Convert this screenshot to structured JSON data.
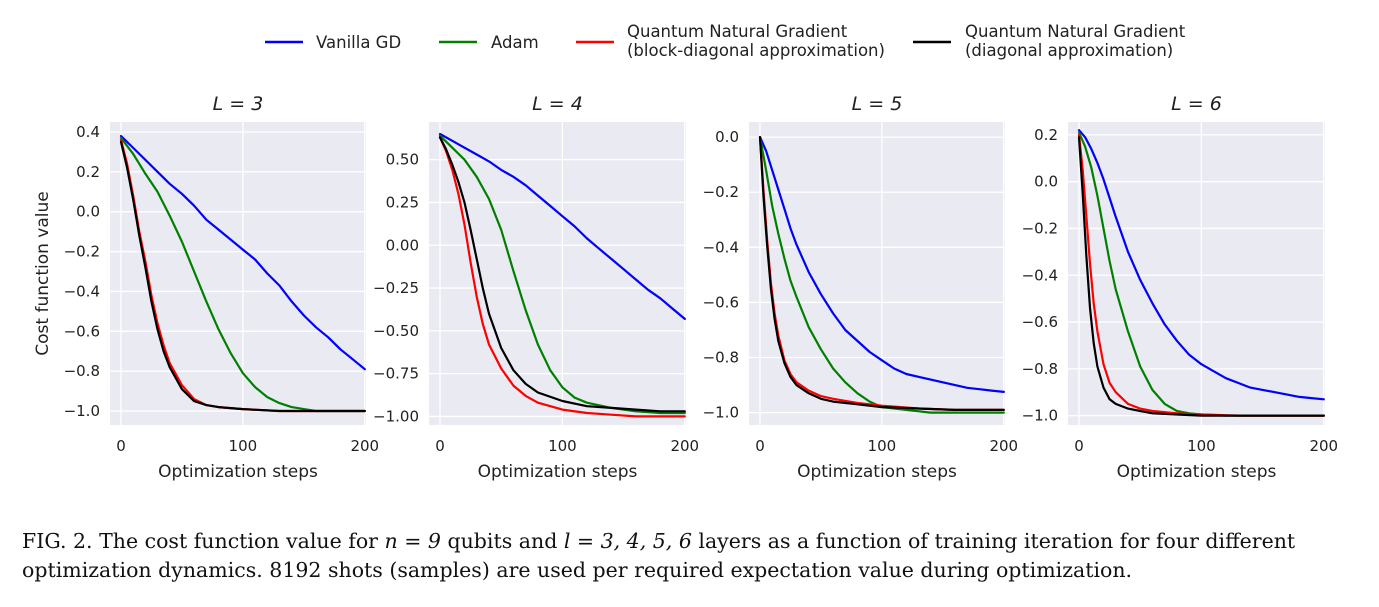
{
  "legend": [
    {
      "label_lines": [
        "Vanilla GD"
      ],
      "color": "#0000ff"
    },
    {
      "label_lines": [
        "Adam"
      ],
      "color": "#008000"
    },
    {
      "label_lines": [
        "Quantum Natural Gradient",
        "(block-diagonal approximation)"
      ],
      "color": "#ff0000"
    },
    {
      "label_lines": [
        "Quantum Natural Gradient",
        "(diagonal approximation)"
      ],
      "color": "#000000"
    }
  ],
  "caption": {
    "label": "FIG. 2.",
    "text_a": " The cost function value for ",
    "math_a": "n = 9",
    "text_b": " qubits and ",
    "math_b": "l = 3, 4, 5, 6",
    "text_c": " layers as a function of training iteration for four different optimization dynamics. 8192 shots (samples) are used per required expectation value during optimization."
  },
  "chart_data": [
    {
      "type": "line",
      "title": "L = 3",
      "xlabel": "Optimization steps",
      "ylabel": "Cost function value",
      "xlim": [
        -9,
        201
      ],
      "ylim": [
        -1.07,
        0.45
      ],
      "xticks": [
        0,
        100,
        200
      ],
      "yticks": [
        0.4,
        0.2,
        0.0,
        -0.2,
        -0.4,
        -0.6,
        -0.8,
        -1.0
      ],
      "ytick_labels": [
        "0.4",
        "0.2",
        "0.0",
        "−0.2",
        "−0.4",
        "−0.6",
        "−0.8",
        "−1.0"
      ],
      "grid": true,
      "series": [
        {
          "name": "Vanilla GD",
          "color": "#0000ff",
          "x": [
            0,
            10,
            20,
            30,
            40,
            50,
            60,
            70,
            80,
            90,
            100,
            110,
            120,
            130,
            140,
            150,
            160,
            170,
            180,
            190,
            200
          ],
          "y": [
            0.38,
            0.32,
            0.26,
            0.2,
            0.14,
            0.09,
            0.03,
            -0.04,
            -0.09,
            -0.14,
            -0.19,
            -0.24,
            -0.31,
            -0.37,
            -0.45,
            -0.52,
            -0.58,
            -0.63,
            -0.69,
            -0.74,
            -0.79
          ]
        },
        {
          "name": "Adam",
          "color": "#008000",
          "x": [
            0,
            10,
            20,
            30,
            40,
            50,
            60,
            70,
            80,
            90,
            100,
            110,
            120,
            130,
            140,
            150,
            160,
            170,
            180,
            190,
            200
          ],
          "y": [
            0.37,
            0.29,
            0.19,
            0.1,
            -0.02,
            -0.15,
            -0.3,
            -0.45,
            -0.59,
            -0.71,
            -0.81,
            -0.88,
            -0.93,
            -0.96,
            -0.98,
            -0.99,
            -1.0,
            -1.0,
            -1.0,
            -1.0,
            -1.0
          ]
        },
        {
          "name": "Quantum Natural Gradient (block-diagonal approximation)",
          "color": "#ff0000",
          "x": [
            0,
            5,
            10,
            15,
            20,
            25,
            30,
            35,
            40,
            50,
            60,
            70,
            80,
            100,
            130,
            160,
            200
          ],
          "y": [
            0.36,
            0.24,
            0.08,
            -0.1,
            -0.25,
            -0.42,
            -0.56,
            -0.67,
            -0.76,
            -0.87,
            -0.94,
            -0.97,
            -0.98,
            -0.99,
            -1.0,
            -1.0,
            -1.0
          ]
        },
        {
          "name": "Quantum Natural Gradient (diagonal approximation)",
          "color": "#000000",
          "x": [
            0,
            5,
            10,
            15,
            20,
            25,
            30,
            35,
            40,
            50,
            60,
            70,
            80,
            100,
            130,
            160,
            200
          ],
          "y": [
            0.35,
            0.22,
            0.06,
            -0.12,
            -0.28,
            -0.45,
            -0.59,
            -0.7,
            -0.78,
            -0.89,
            -0.95,
            -0.97,
            -0.98,
            -0.99,
            -1.0,
            -1.0,
            -1.0
          ]
        }
      ]
    },
    {
      "type": "line",
      "title": "L = 4",
      "xlabel": "Optimization steps",
      "ylabel": "",
      "xlim": [
        -9,
        201
      ],
      "ylim": [
        -1.05,
        0.72
      ],
      "xticks": [
        0,
        100,
        200
      ],
      "yticks": [
        0.5,
        0.25,
        0.0,
        -0.25,
        -0.5,
        -0.75,
        -1.0
      ],
      "ytick_labels": [
        "0.50",
        "0.25",
        "0.00",
        "−0.25",
        "−0.50",
        "−0.75",
        "−1.00"
      ],
      "grid": true,
      "series": [
        {
          "name": "Vanilla GD",
          "color": "#0000ff",
          "x": [
            0,
            10,
            20,
            30,
            40,
            50,
            60,
            70,
            80,
            90,
            100,
            110,
            120,
            130,
            140,
            150,
            160,
            170,
            180,
            190,
            200
          ],
          "y": [
            0.65,
            0.61,
            0.57,
            0.53,
            0.49,
            0.44,
            0.4,
            0.35,
            0.29,
            0.23,
            0.17,
            0.11,
            0.04,
            -0.02,
            -0.08,
            -0.14,
            -0.2,
            -0.26,
            -0.31,
            -0.37,
            -0.43
          ]
        },
        {
          "name": "Adam",
          "color": "#008000",
          "x": [
            0,
            10,
            20,
            30,
            40,
            50,
            60,
            70,
            80,
            90,
            100,
            110,
            120,
            140,
            160,
            180,
            200
          ],
          "y": [
            0.64,
            0.57,
            0.5,
            0.4,
            0.27,
            0.09,
            -0.15,
            -0.38,
            -0.58,
            -0.73,
            -0.83,
            -0.89,
            -0.92,
            -0.95,
            -0.97,
            -0.98,
            -0.98
          ]
        },
        {
          "name": "Quantum Natural Gradient (block-diagonal approximation)",
          "color": "#ff0000",
          "x": [
            0,
            5,
            10,
            15,
            20,
            25,
            30,
            35,
            40,
            50,
            60,
            70,
            80,
            100,
            120,
            140,
            160,
            180,
            200
          ],
          "y": [
            0.63,
            0.55,
            0.44,
            0.3,
            0.12,
            -0.1,
            -0.3,
            -0.46,
            -0.58,
            -0.72,
            -0.82,
            -0.88,
            -0.92,
            -0.96,
            -0.98,
            -0.99,
            -1.0,
            -1.0,
            -1.0
          ]
        },
        {
          "name": "Quantum Natural Gradient (diagonal approximation)",
          "color": "#000000",
          "x": [
            0,
            5,
            10,
            15,
            20,
            25,
            30,
            35,
            40,
            50,
            60,
            70,
            80,
            100,
            120,
            140,
            160,
            180,
            200
          ],
          "y": [
            0.63,
            0.56,
            0.47,
            0.37,
            0.25,
            0.09,
            -0.08,
            -0.25,
            -0.4,
            -0.6,
            -0.73,
            -0.81,
            -0.86,
            -0.91,
            -0.94,
            -0.95,
            -0.96,
            -0.97,
            -0.97
          ]
        }
      ]
    },
    {
      "type": "line",
      "title": "L = 5",
      "xlabel": "Optimization steps",
      "ylabel": "",
      "xlim": [
        -9,
        201
      ],
      "ylim": [
        -1.045,
        0.055
      ],
      "xticks": [
        0,
        100,
        200
      ],
      "yticks": [
        0.0,
        -0.2,
        -0.4,
        -0.6,
        -0.8,
        -1.0
      ],
      "ytick_labels": [
        "0.0",
        "−0.2",
        "−0.4",
        "−0.6",
        "−0.8",
        "−1.0"
      ],
      "grid": true,
      "series": [
        {
          "name": "Vanilla GD",
          "color": "#0000ff",
          "x": [
            0,
            5,
            10,
            15,
            20,
            25,
            30,
            40,
            50,
            60,
            70,
            80,
            90,
            100,
            110,
            120,
            130,
            140,
            150,
            160,
            170,
            180,
            190,
            200
          ],
          "y": [
            0.0,
            -0.05,
            -0.12,
            -0.19,
            -0.26,
            -0.33,
            -0.39,
            -0.49,
            -0.57,
            -0.64,
            -0.7,
            -0.74,
            -0.78,
            -0.81,
            -0.84,
            -0.86,
            -0.87,
            -0.88,
            -0.89,
            -0.9,
            -0.91,
            -0.915,
            -0.92,
            -0.925
          ]
        },
        {
          "name": "Adam",
          "color": "#008000",
          "x": [
            0,
            5,
            10,
            15,
            20,
            25,
            30,
            40,
            50,
            60,
            70,
            80,
            90,
            100,
            120,
            140,
            160,
            180,
            200
          ],
          "y": [
            0.0,
            -0.12,
            -0.25,
            -0.35,
            -0.44,
            -0.52,
            -0.58,
            -0.69,
            -0.77,
            -0.84,
            -0.89,
            -0.93,
            -0.96,
            -0.98,
            -0.99,
            -1.0,
            -1.0,
            -1.0,
            -1.0
          ]
        },
        {
          "name": "Quantum Natural Gradient (block-diagonal approximation)",
          "color": "#ff0000",
          "x": [
            0,
            3,
            6,
            9,
            12,
            15,
            20,
            25,
            30,
            40,
            50,
            60,
            80,
            100,
            130,
            160,
            200
          ],
          "y": [
            0.0,
            -0.2,
            -0.38,
            -0.53,
            -0.64,
            -0.72,
            -0.81,
            -0.86,
            -0.89,
            -0.92,
            -0.94,
            -0.95,
            -0.965,
            -0.975,
            -0.985,
            -0.99,
            -0.99
          ]
        },
        {
          "name": "Quantum Natural Gradient (diagonal approximation)",
          "color": "#000000",
          "x": [
            0,
            3,
            6,
            9,
            12,
            15,
            20,
            25,
            30,
            40,
            50,
            60,
            80,
            100,
            130,
            160,
            200
          ],
          "y": [
            0.0,
            -0.22,
            -0.4,
            -0.55,
            -0.66,
            -0.74,
            -0.82,
            -0.87,
            -0.9,
            -0.93,
            -0.95,
            -0.96,
            -0.97,
            -0.98,
            -0.985,
            -0.99,
            -0.99
          ]
        }
      ]
    },
    {
      "type": "line",
      "title": "L = 6",
      "xlabel": "Optimization steps",
      "ylabel": "",
      "xlim": [
        -9,
        201
      ],
      "ylim": [
        -1.04,
        0.255
      ],
      "xticks": [
        0,
        100,
        200
      ],
      "yticks": [
        0.2,
        0.0,
        -0.2,
        -0.4,
        -0.6,
        -0.8,
        -1.0
      ],
      "ytick_labels": [
        "0.2",
        "0.0",
        "−0.2",
        "−0.4",
        "−0.6",
        "−0.8",
        "−1.0"
      ],
      "grid": true,
      "series": [
        {
          "name": "Vanilla GD",
          "color": "#0000ff",
          "x": [
            0,
            5,
            10,
            15,
            20,
            25,
            30,
            40,
            50,
            60,
            70,
            80,
            90,
            100,
            110,
            120,
            130,
            140,
            150,
            160,
            170,
            180,
            190,
            200
          ],
          "y": [
            0.22,
            0.19,
            0.14,
            0.08,
            0.01,
            -0.07,
            -0.15,
            -0.3,
            -0.42,
            -0.52,
            -0.61,
            -0.68,
            -0.74,
            -0.78,
            -0.81,
            -0.84,
            -0.86,
            -0.88,
            -0.89,
            -0.9,
            -0.91,
            -0.92,
            -0.925,
            -0.93
          ]
        },
        {
          "name": "Adam",
          "color": "#008000",
          "x": [
            0,
            5,
            10,
            15,
            20,
            25,
            30,
            40,
            50,
            60,
            70,
            80,
            90,
            100,
            120,
            140,
            160,
            180,
            200
          ],
          "y": [
            0.21,
            0.15,
            0.06,
            -0.06,
            -0.2,
            -0.34,
            -0.46,
            -0.64,
            -0.79,
            -0.89,
            -0.95,
            -0.98,
            -0.99,
            -0.995,
            -1.0,
            -1.0,
            -1.0,
            -1.0,
            -1.0
          ]
        },
        {
          "name": "Quantum Natural Gradient (block-diagonal approximation)",
          "color": "#ff0000",
          "x": [
            0,
            3,
            6,
            9,
            12,
            15,
            20,
            25,
            30,
            40,
            50,
            60,
            80,
            100,
            130,
            160,
            200
          ],
          "y": [
            0.2,
            0.05,
            -0.15,
            -0.35,
            -0.52,
            -0.64,
            -0.78,
            -0.86,
            -0.9,
            -0.95,
            -0.97,
            -0.98,
            -0.99,
            -0.995,
            -1.0,
            -1.0,
            -1.0
          ]
        },
        {
          "name": "Quantum Natural Gradient (diagonal approximation)",
          "color": "#000000",
          "x": [
            0,
            3,
            6,
            9,
            12,
            15,
            20,
            25,
            30,
            40,
            50,
            60,
            80,
            100,
            130,
            160,
            200
          ],
          "y": [
            0.19,
            -0.05,
            -0.32,
            -0.54,
            -0.69,
            -0.79,
            -0.88,
            -0.93,
            -0.95,
            -0.97,
            -0.98,
            -0.99,
            -0.995,
            -1.0,
            -1.0,
            -1.0,
            -1.0
          ]
        }
      ]
    }
  ]
}
